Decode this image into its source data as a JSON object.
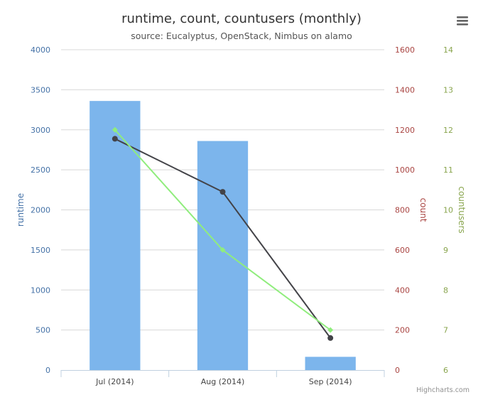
{
  "chart_data": {
    "type": "bar",
    "title": "runtime, count, countusers (monthly)",
    "subtitle": "source: Eucalyptus, OpenStack, Nimbus on alamo",
    "categories": [
      "Jul (2014)",
      "Aug (2014)",
      "Sep (2014)"
    ],
    "series": [
      {
        "name": "runtime",
        "kind": "bar",
        "axis": "runtime",
        "color": "#7cb5ec",
        "values": [
          3360,
          2860,
          165
        ]
      },
      {
        "name": "count",
        "kind": "line",
        "axis": "count",
        "color": "#434348",
        "values": [
          1155,
          890,
          160
        ]
      },
      {
        "name": "countusers",
        "kind": "line",
        "axis": "countusers",
        "color": "#90ed7d",
        "values": [
          12,
          9,
          7
        ]
      }
    ],
    "axes": {
      "runtime": {
        "title": "runtime",
        "ylim": [
          0,
          4000
        ],
        "ticks": [
          "0",
          "500",
          "1000",
          "1500",
          "2000",
          "2500",
          "3000",
          "3500",
          "4000"
        ],
        "color": "#4572a7"
      },
      "count": {
        "title": "count",
        "ylim": [
          0,
          1600
        ],
        "ticks": [
          "0",
          "200",
          "400",
          "600",
          "800",
          "1000",
          "1200",
          "1400",
          "1600"
        ],
        "color": "#aa4643"
      },
      "countusers": {
        "title": "countusers",
        "ylim": [
          6,
          14
        ],
        "ticks": [
          "6",
          "7",
          "8",
          "9",
          "10",
          "11",
          "12",
          "13",
          "14"
        ],
        "color": "#89a54e"
      }
    },
    "grid": true,
    "legend": "none"
  },
  "credits": "Highcharts.com",
  "menu_icon": "hamburger-menu-icon"
}
